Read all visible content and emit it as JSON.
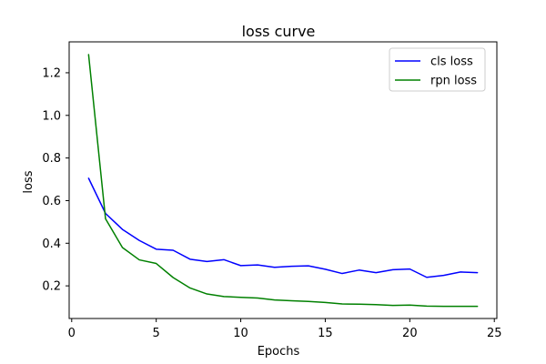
{
  "chart_data": {
    "type": "line",
    "title": "loss curve",
    "xlabel": "Epochs",
    "ylabel": "loss",
    "xlim": [
      -0.15,
      25.15
    ],
    "ylim": [
      0.0468,
      1.345
    ],
    "xticks": [
      0,
      5,
      10,
      15,
      20,
      25
    ],
    "yticks": [
      0.2,
      0.4,
      0.6,
      0.8,
      1.0,
      1.2
    ],
    "xtick_labels": [
      "0",
      "5",
      "10",
      "15",
      "20",
      "25"
    ],
    "ytick_labels": [
      "0.2",
      "0.4",
      "0.6",
      "0.8",
      "1.0",
      "1.2"
    ],
    "grid": false,
    "legend_position": "top-right",
    "x": [
      1,
      2,
      3,
      4,
      5,
      6,
      7,
      8,
      9,
      10,
      11,
      12,
      13,
      14,
      15,
      16,
      17,
      18,
      19,
      20,
      21,
      22,
      23,
      24
    ],
    "series": [
      {
        "name": "cls loss",
        "color": "#0000ff",
        "values": [
          0.705,
          0.54,
          0.465,
          0.413,
          0.372,
          0.367,
          0.325,
          0.314,
          0.323,
          0.295,
          0.298,
          0.287,
          0.292,
          0.294,
          0.278,
          0.258,
          0.274,
          0.262,
          0.276,
          0.279,
          0.24,
          0.249,
          0.265,
          0.262
        ]
      },
      {
        "name": "rpn loss",
        "color": "#008000",
        "values": [
          1.285,
          0.515,
          0.38,
          0.322,
          0.305,
          0.239,
          0.19,
          0.162,
          0.15,
          0.146,
          0.143,
          0.134,
          0.13,
          0.127,
          0.122,
          0.115,
          0.114,
          0.112,
          0.108,
          0.11,
          0.105,
          0.104,
          0.104,
          0.104
        ]
      }
    ]
  }
}
